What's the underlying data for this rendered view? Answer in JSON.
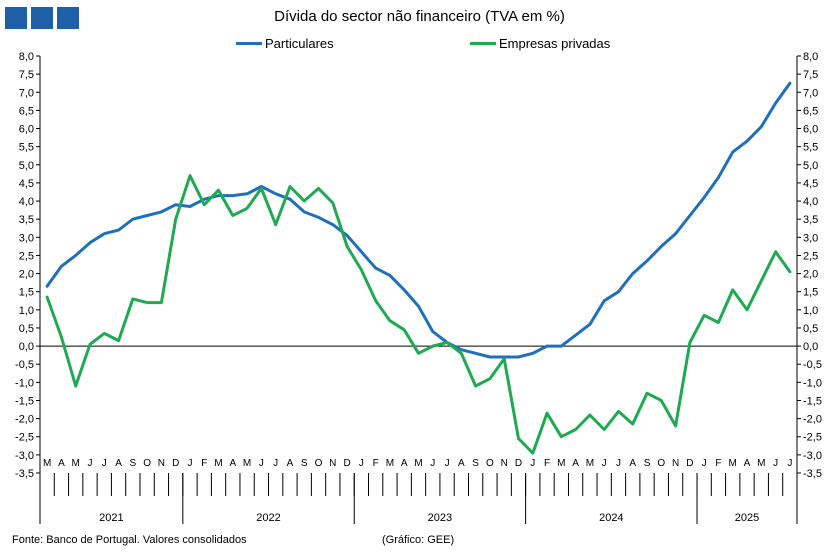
{
  "header": {
    "logo_squares": 3,
    "logo_color": "#1f5fa8"
  },
  "footer": {
    "source": "Fonte: Banco de Portugal. Valores consolidados",
    "credit": "(Gráfico: GEE)"
  },
  "chart_data": {
    "type": "line",
    "title": "Dívida do sector não financeiro (TVA em %)",
    "ylim": [
      -3.5,
      8.0
    ],
    "ystep": 0.5,
    "ytick_labels": [
      "8,0",
      "7,5",
      "7,0",
      "6,5",
      "6,0",
      "5,5",
      "5,0",
      "4,5",
      "4,0",
      "3,5",
      "3,0",
      "2,5",
      "2,0",
      "1,5",
      "1,0",
      "0,5",
      "0,0",
      "-0,5",
      "-1,0",
      "-1,5",
      "-2,0",
      "-2,5",
      "-3,0",
      "-3,5"
    ],
    "months": [
      "M",
      "A",
      "M",
      "J",
      "J",
      "A",
      "S",
      "O",
      "N",
      "D",
      "J",
      "F",
      "M",
      "A",
      "M",
      "J",
      "J",
      "A",
      "S",
      "O",
      "N",
      "D",
      "J",
      "F",
      "M",
      "A",
      "M",
      "J",
      "J",
      "A",
      "S",
      "O",
      "N",
      "D",
      "J",
      "F",
      "M",
      "A",
      "M",
      "J",
      "J",
      "A",
      "S",
      "O",
      "N",
      "D",
      "J",
      "F",
      "M",
      "A",
      "M",
      "J",
      "J"
    ],
    "years": [
      {
        "label": "2021",
        "count": 10
      },
      {
        "label": "2022",
        "count": 12
      },
      {
        "label": "2023",
        "count": 12
      },
      {
        "label": "2024",
        "count": 12
      },
      {
        "label": "2025",
        "count": 7
      }
    ],
    "series": [
      {
        "name": "Particulares",
        "color": "#1f6fbf",
        "values": [
          1.65,
          2.2,
          2.5,
          2.85,
          3.1,
          3.2,
          3.5,
          3.6,
          3.7,
          3.9,
          3.85,
          4.05,
          4.15,
          4.15,
          4.2,
          4.4,
          4.2,
          4.05,
          3.7,
          3.55,
          3.35,
          3.05,
          2.6,
          2.15,
          1.95,
          1.55,
          1.1,
          0.4,
          0.1,
          -0.1,
          -0.2,
          -0.3,
          -0.3,
          -0.3,
          -0.2,
          0.0,
          0.0,
          0.3,
          0.6,
          1.25,
          1.5,
          2.0,
          2.35,
          2.75,
          3.1,
          3.6,
          4.1,
          4.65,
          5.35,
          5.65,
          6.05,
          6.7,
          7.25
        ]
      },
      {
        "name": "Empresas privadas",
        "color": "#1eaa50",
        "values": [
          1.35,
          0.25,
          -1.1,
          0.05,
          0.35,
          0.15,
          1.3,
          1.2,
          1.2,
          3.5,
          4.7,
          3.9,
          4.3,
          3.6,
          3.8,
          4.35,
          3.35,
          4.4,
          4.0,
          4.35,
          3.95,
          2.75,
          2.1,
          1.25,
          0.7,
          0.45,
          -0.2,
          0.0,
          0.1,
          -0.2,
          -1.1,
          -0.9,
          -0.35,
          -2.55,
          -2.95,
          -1.85,
          -2.5,
          -2.3,
          -1.9,
          -2.3,
          -1.8,
          -2.15,
          -1.3,
          -1.5,
          -2.2,
          0.1,
          0.85,
          0.65,
          1.55,
          1.0,
          1.8,
          2.6,
          2.05
        ]
      }
    ]
  }
}
